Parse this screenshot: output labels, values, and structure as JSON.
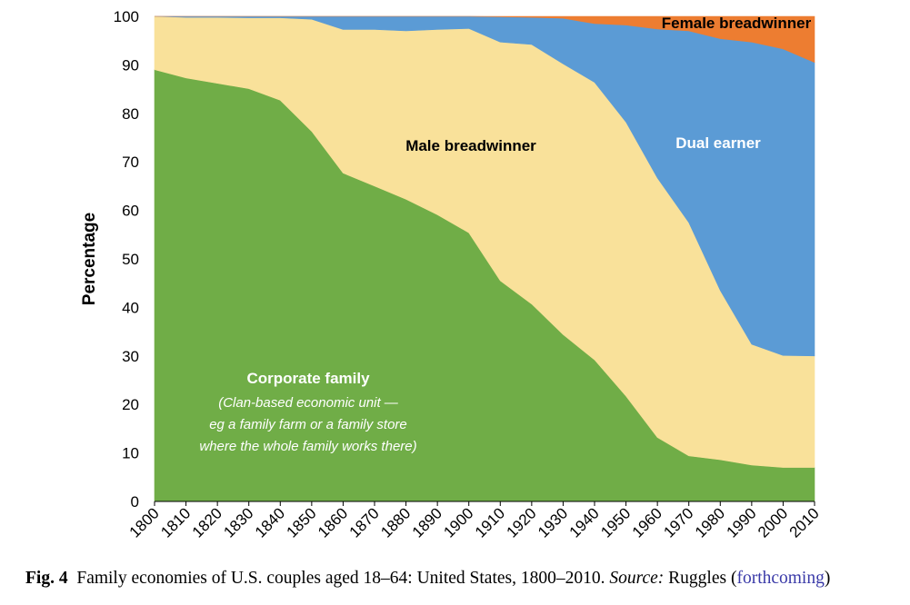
{
  "chart_data": {
    "type": "area",
    "stacked": true,
    "x": [
      1800,
      1810,
      1820,
      1830,
      1840,
      1850,
      1860,
      1870,
      1880,
      1890,
      1900,
      1910,
      1920,
      1930,
      1940,
      1950,
      1960,
      1970,
      1980,
      1990,
      2000,
      2010
    ],
    "xtick_labels": [
      "1800",
      "1810",
      "1820",
      "1830",
      "1840",
      "1850",
      "1860",
      "1870",
      "1880",
      "1890",
      "1900",
      "1910",
      "1920",
      "1930",
      "1940",
      "1950",
      "1960",
      "1970",
      "1980",
      "1990",
      "2000",
      "2010"
    ],
    "ylabel": "Percentage",
    "ylim": [
      0,
      100
    ],
    "yticks": [
      0,
      10,
      20,
      30,
      40,
      50,
      60,
      70,
      80,
      90,
      100
    ],
    "grid": false,
    "series": [
      {
        "name": "Corporate family",
        "color": "#70ad47",
        "values": [
          89,
          87.3,
          86.2,
          85.1,
          82.7,
          76.3,
          67.7,
          65,
          62.3,
          59.1,
          55.4,
          45.5,
          40.7,
          34.4,
          29.2,
          21.7,
          13.2,
          9.4,
          8.6,
          7.5,
          7,
          7
        ]
      },
      {
        "name": "Male breadwinner",
        "color": "#f9e19a",
        "values": [
          11,
          12.5,
          13.6,
          14.6,
          17,
          23.1,
          29.6,
          32.3,
          34.7,
          38.2,
          42.1,
          49.2,
          53.5,
          55.8,
          57.2,
          56.5,
          53.5,
          48.1,
          34.9,
          24.9,
          23.1,
          23
        ]
      },
      {
        "name": "Dual earner",
        "color": "#5b9bd5",
        "values": [
          0,
          0.2,
          0.2,
          0.3,
          0.3,
          0.6,
          2.7,
          2.7,
          3,
          2.7,
          2.5,
          5.2,
          5.6,
          9.4,
          12.1,
          20,
          30.7,
          39.5,
          51.9,
          62.3,
          63.2,
          60.5
        ]
      },
      {
        "name": "Female breadwinner",
        "color": "#ed7d31",
        "values": [
          0,
          0,
          0,
          0,
          0,
          0,
          0,
          0,
          0,
          0,
          0,
          0.1,
          0.2,
          0.4,
          1.5,
          1.8,
          2.6,
          3,
          4.6,
          5.3,
          6.7,
          9.5
        ]
      }
    ],
    "annotations": {
      "female": "Female breadwinner",
      "dual": "Dual earner",
      "male": "Male breadwinner",
      "corporate_title": "Corporate family",
      "corporate_line1": "(Clan-based economic unit —",
      "corporate_line2": "eg a family farm or a family store",
      "corporate_line3": "where the whole family works there)"
    }
  },
  "caption": {
    "fig_label": "Fig. 4",
    "text": "Family economies of U.S. couples aged 18–64: United States, 1800–2010.",
    "source_label": "Source:",
    "source_text": "Ruggles",
    "open_paren": "(",
    "link_text": "forthcoming",
    "close_paren": ")"
  }
}
